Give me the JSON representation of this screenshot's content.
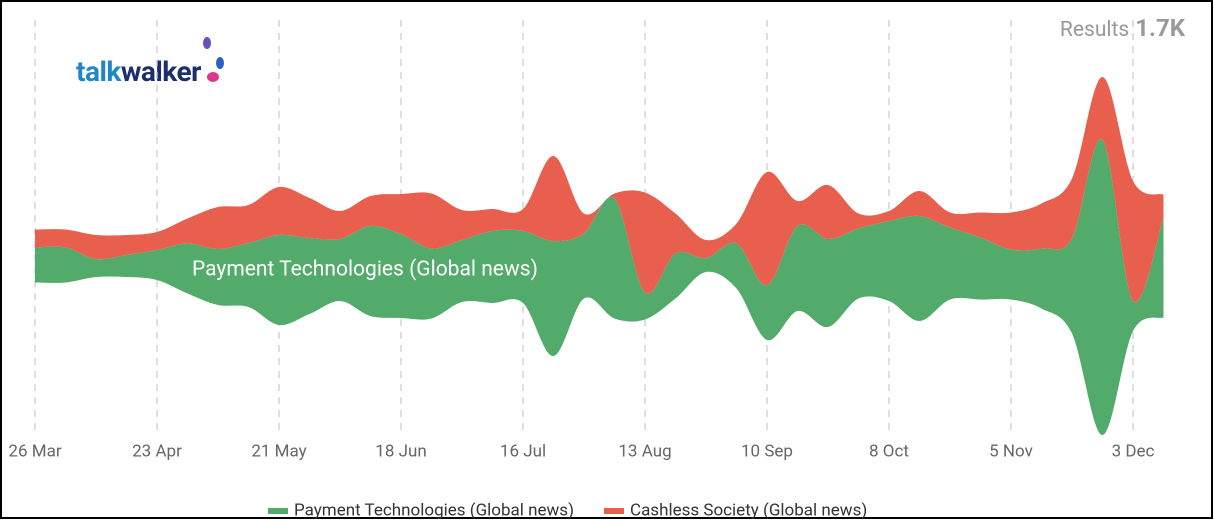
{
  "chart_data": {
    "type": "streamgraph",
    "results_label": "Results",
    "results_value": "1.7K",
    "logo": [
      "talk",
      "walker"
    ],
    "categories": [
      "26 Mar",
      null,
      null,
      null,
      "23 Apr",
      null,
      null,
      null,
      "21 May",
      null,
      null,
      null,
      "18 Jun",
      null,
      null,
      null,
      "16 Jul",
      null,
      null,
      null,
      "13 Aug",
      null,
      null,
      null,
      "10 Sep",
      null,
      null,
      null,
      "8 Oct",
      null,
      null,
      null,
      "5 Nov",
      null,
      null,
      null,
      "3 Dec",
      null
    ],
    "series": [
      {
        "name": "Payment Technologies (Global news)",
        "color": "#52ab6a",
        "values": [
          35,
          35,
          18,
          22,
          30,
          50,
          56,
          64,
          90,
          76,
          62,
          90,
          84,
          70,
          62,
          72,
          72,
          115,
          65,
          120,
          27,
          45,
          14,
          45,
          55,
          85,
          88,
          70,
          80,
          105,
          72,
          62,
          50,
          60,
          95,
          295,
          30,
          100
        ]
      },
      {
        "name": "Cashless Society (Global news)",
        "color": "#e8604d",
        "values": [
          18,
          18,
          24,
          20,
          18,
          25,
          42,
          38,
          48,
          40,
          28,
          30,
          40,
          55,
          30,
          22,
          22,
          85,
          20,
          5,
          100,
          40,
          18,
          20,
          113,
          25,
          54,
          15,
          10,
          25,
          15,
          25,
          37,
          45,
          60,
          63,
          120,
          23
        ]
      }
    ],
    "grid": true
  }
}
